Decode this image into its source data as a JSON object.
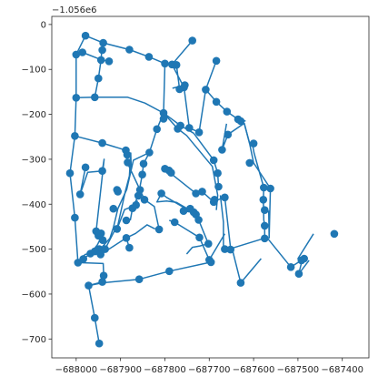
{
  "chart_data": {
    "type": "scatter",
    "title": "",
    "xlabel": "",
    "ylabel": "",
    "grid": false,
    "colors": {
      "series": "#1f77b4",
      "axis": "#262626"
    },
    "x_ticks": [
      -688000,
      -687900,
      -687800,
      -687700,
      -687600,
      -687500,
      -687400
    ],
    "x_tick_labels": [
      "−688000",
      "−687900",
      "−687800",
      "−687700",
      "−687600",
      "−687500",
      "−687400"
    ],
    "y_offset_label": "−1.056e6",
    "y_ticks": [
      0,
      -100,
      -200,
      -300,
      -400,
      -500,
      -600,
      -700
    ],
    "y_tick_labels": [
      "0",
      "−100",
      "−200",
      "−300",
      "−400",
      "−500",
      "−600",
      "−700"
    ],
    "xlim": [
      -688055,
      -687340
    ],
    "ylim": [
      -742,
      18
    ],
    "segments": [
      [
        [
          -687979,
          -25
        ],
        [
          -687939,
          -41
        ],
        [
          -687880,
          -56
        ],
        [
          -687836,
          -72
        ],
        [
          -687800,
          -87
        ]
      ],
      [
        [
          -687979,
          -25
        ],
        [
          -688000,
          -67
        ],
        [
          -688000,
          -163
        ],
        [
          -688003,
          -248
        ],
        [
          -688014,
          -331
        ],
        [
          -688003,
          -430
        ],
        [
          -687996,
          -530
        ]
      ],
      [
        [
          -687986,
          -62
        ],
        [
          -687942,
          -79
        ],
        [
          -687926,
          -82
        ]
      ],
      [
        [
          -687941,
          -41
        ],
        [
          -687944,
          -79
        ],
        [
          -687950,
          -120
        ],
        [
          -687958,
          -162
        ]
      ],
      [
        [
          -688000,
          -163
        ],
        [
          -687958,
          -162
        ],
        [
          -687884,
          -162
        ],
        [
          -687845,
          -175
        ],
        [
          -687803,
          -197
        ]
      ],
      [
        [
          -688003,
          -248
        ],
        [
          -687941,
          -264
        ],
        [
          -687888,
          -280
        ]
      ],
      [
        [
          -687800,
          -87
        ],
        [
          -687774,
          -90
        ]
      ],
      [
        [
          -687774,
          -90
        ],
        [
          -687767,
          -144
        ]
      ],
      [
        [
          -687800,
          -87
        ],
        [
          -687803,
          -197
        ],
        [
          -687765,
          -225
        ],
        [
          -687735,
          -242
        ]
      ],
      [
        [
          -687738,
          -36
        ],
        [
          -687784,
          -89
        ],
        [
          -687757,
          -140
        ]
      ],
      [
        [
          -687783,
          -142
        ],
        [
          -687755,
          -135
        ]
      ],
      [
        [
          -687757,
          -140
        ],
        [
          -687745,
          -230
        ]
      ],
      [
        [
          -687745,
          -230
        ],
        [
          -687723,
          -240
        ]
      ],
      [
        [
          -687803,
          -197
        ],
        [
          -687818,
          -233
        ],
        [
          -687835,
          -285
        ],
        [
          -687848,
          -310
        ],
        [
          -687851,
          -334
        ],
        [
          -687860,
          -381
        ],
        [
          -687873,
          -409
        ],
        [
          -687878,
          -436
        ]
      ],
      [
        [
          -687803,
          -197
        ],
        [
          -687771,
          -232
        ],
        [
          -687751,
          -247
        ],
        [
          -687693,
          -316
        ],
        [
          -687681,
          -380
        ],
        [
          -687684,
          -413
        ]
      ],
      [
        [
          -687835,
          -285
        ],
        [
          -687871,
          -302
        ],
        [
          -687886,
          -367
        ],
        [
          -687906,
          -410
        ],
        [
          -687916,
          -452
        ],
        [
          -687924,
          -476
        ],
        [
          -687944,
          -498
        ],
        [
          -687944,
          -509
        ],
        [
          -687963,
          -508
        ],
        [
          -687980,
          -512
        ],
        [
          -687991,
          -523
        ]
      ],
      [
        [
          -687888,
          -280
        ],
        [
          -687885,
          -307
        ],
        [
          -687856,
          -368
        ],
        [
          -687846,
          -390
        ],
        [
          -687824,
          -405
        ],
        [
          -687813,
          -456
        ]
      ],
      [
        [
          -687808,
          -376
        ],
        [
          -687796,
          -385
        ],
        [
          -687730,
          -423
        ],
        [
          -687724,
          -435
        ],
        [
          -687702,
          -488
        ],
        [
          -687710,
          -490
        ],
        [
          -687721,
          -493
        ],
        [
          -687738,
          -496
        ],
        [
          -687751,
          -511
        ]
      ],
      [
        [
          -687808,
          -376
        ],
        [
          -687818,
          -395
        ],
        [
          -687796,
          -393
        ],
        [
          -687774,
          -396
        ],
        [
          -687735,
          -418
        ],
        [
          -687758,
          -415
        ],
        [
          -687743,
          -410
        ]
      ],
      [
        [
          -687800,
          -321
        ],
        [
          -687730,
          -376
        ]
      ],
      [
        [
          -687791,
          -325
        ],
        [
          -687786,
          -330
        ]
      ],
      [
        [
          -687723,
          -240
        ],
        [
          -687708,
          -145
        ],
        [
          -687684,
          -172
        ],
        [
          -687660,
          -194
        ],
        [
          -687635,
          -211
        ],
        [
          -687618,
          -215
        ]
      ],
      [
        [
          -687684,
          -81
        ],
        [
          -687708,
          -145
        ]
      ],
      [
        [
          -687735,
          -242
        ],
        [
          -687690,
          -302
        ]
      ],
      [
        [
          -687716,
          -372
        ],
        [
          -687690,
          -395
        ]
      ],
      [
        [
          -687690,
          -302
        ],
        [
          -687681,
          -331
        ],
        [
          -687679,
          -361
        ]
      ],
      [
        [
          -687661,
          -221
        ],
        [
          -687671,
          -279
        ],
        [
          -687658,
          -245
        ],
        [
          -687621,
          -220
        ],
        [
          -687609,
          -265
        ],
        [
          -687600,
          -308
        ],
        [
          -687562,
          -365
        ],
        [
          -687565,
          -475
        ],
        [
          -687566,
          -414
        ]
      ],
      [
        [
          -687621,
          -220
        ],
        [
          -687609,
          -265
        ]
      ],
      [
        [
          -687603,
          -264
        ],
        [
          -687599,
          -286
        ],
        [
          -687577,
          -363
        ]
      ],
      [
        [
          -687577,
          -363
        ],
        [
          -687578,
          -390
        ],
        [
          -687577,
          -435
        ],
        [
          -687575,
          -448
        ],
        [
          -687575,
          -476
        ]
      ],
      [
        [
          -687688,
          -390
        ],
        [
          -687680,
          -390
        ],
        [
          -687665,
          -385
        ],
        [
          -687652,
          -497
        ],
        [
          -687658,
          -499
        ]
      ],
      [
        [
          -687652,
          -499
        ],
        [
          -687570,
          -474
        ],
        [
          -687516,
          -540
        ],
        [
          -687492,
          -525
        ],
        [
          -687500,
          -521
        ],
        [
          -687465,
          -466
        ]
      ],
      [
        [
          -687490,
          -521
        ],
        [
          -687498,
          -555
        ],
        [
          -687475,
          -525
        ]
      ],
      [
        [
          -687675,
          -380
        ],
        [
          -687668,
          -440
        ],
        [
          -687668,
          -500
        ]
      ],
      [
        [
          -687668,
          -500
        ],
        [
          -687648,
          -501
        ],
        [
          -687629,
          -575
        ],
        [
          -687583,
          -521
        ]
      ],
      [
        [
          -687996,
          -530
        ],
        [
          -687984,
          -522
        ],
        [
          -687968,
          -510
        ],
        [
          -687952,
          -490
        ],
        [
          -687946,
          -478
        ],
        [
          -687940,
          -470
        ],
        [
          -687944,
          -465
        ]
      ],
      [
        [
          -687979,
          -318
        ],
        [
          -687991,
          -378
        ],
        [
          -687974,
          -329
        ],
        [
          -687941,
          -326
        ]
      ],
      [
        [
          -687941,
          -326
        ],
        [
          -687937,
          -300
        ],
        [
          -687955,
          -460
        ]
      ],
      [
        [
          -687955,
          -460
        ],
        [
          -687946,
          -479
        ],
        [
          -687940,
          -472
        ]
      ],
      [
        [
          -687996,
          -530
        ],
        [
          -687939,
          -532
        ],
        [
          -687938,
          -559
        ],
        [
          -687941,
          -573
        ],
        [
          -687972,
          -581
        ]
      ],
      [
        [
          -687972,
          -581
        ],
        [
          -687941,
          -575
        ],
        [
          -687858,
          -567
        ],
        [
          -687790,
          -549
        ],
        [
          -687696,
          -529
        ]
      ],
      [
        [
          -687972,
          -581
        ],
        [
          -687958,
          -653
        ],
        [
          -687948,
          -710
        ]
      ],
      [
        [
          -687945,
          -512
        ],
        [
          -687887,
          -475
        ],
        [
          -687880,
          -497
        ]
      ],
      [
        [
          -687887,
          -475
        ],
        [
          -687866,
          -465
        ],
        [
          -687840,
          -446
        ],
        [
          -687822,
          -455
        ]
      ],
      [
        [
          -687908,
          -455
        ],
        [
          -687902,
          -440
        ],
        [
          -687891,
          -412
        ],
        [
          -687865,
          -402
        ],
        [
          -687862,
          -392
        ]
      ],
      [
        [
          -687935,
          -500
        ],
        [
          -687915,
          -462
        ],
        [
          -687908,
          -455
        ],
        [
          -687889,
          -371
        ],
        [
          -687880,
          -337
        ],
        [
          -687877,
          -286
        ],
        [
          -687876,
          -322
        ]
      ],
      [
        [
          -687778,
          -440
        ],
        [
          -687790,
          -436
        ]
      ],
      [
        [
          -687778,
          -440
        ],
        [
          -687722,
          -474
        ],
        [
          -687700,
          -524
        ],
        [
          -687665,
          -466
        ]
      ]
    ],
    "points": [
      [
        -687979,
        -25
      ],
      [
        -688000,
        -67
      ],
      [
        -687986,
        -62
      ],
      [
        -687939,
        -41
      ],
      [
        -687941,
        -57
      ],
      [
        -687944,
        -79
      ],
      [
        -687926,
        -82
      ],
      [
        -687950,
        -120
      ],
      [
        -687880,
        -56
      ],
      [
        -687836,
        -72
      ],
      [
        -687800,
        -87
      ],
      [
        -687784,
        -89
      ],
      [
        -687774,
        -90
      ],
      [
        -687738,
        -36
      ],
      [
        -687684,
        -81
      ],
      [
        -687757,
        -140
      ],
      [
        -687767,
        -144
      ],
      [
        -687755,
        -135
      ],
      [
        -688000,
        -163
      ],
      [
        -687958,
        -162
      ],
      [
        -687803,
        -197
      ],
      [
        -687803,
        -210
      ],
      [
        -687771,
        -232
      ],
      [
        -687765,
        -225
      ],
      [
        -687745,
        -230
      ],
      [
        -687723,
        -240
      ],
      [
        -687708,
        -145
      ],
      [
        -687684,
        -172
      ],
      [
        -687660,
        -194
      ],
      [
        -687635,
        -211
      ],
      [
        -687629,
        -215
      ],
      [
        -688003,
        -248
      ],
      [
        -687941,
        -264
      ],
      [
        -687888,
        -280
      ],
      [
        -687885,
        -290
      ],
      [
        -687884,
        -307
      ],
      [
        -687835,
        -285
      ],
      [
        -687818,
        -233
      ],
      [
        -687800,
        -321
      ],
      [
        -687791,
        -325
      ],
      [
        -687786,
        -330
      ],
      [
        -687848,
        -310
      ],
      [
        -687851,
        -334
      ],
      [
        -687690,
        -302
      ],
      [
        -687681,
        -331
      ],
      [
        -687679,
        -361
      ],
      [
        -687671,
        -279
      ],
      [
        -687658,
        -245
      ],
      [
        -687600,
        -265
      ],
      [
        -687609,
        -308
      ],
      [
        -687562,
        -365
      ],
      [
        -687578,
        -390
      ],
      [
        -687575,
        -448
      ],
      [
        -687575,
        -476
      ],
      [
        -688014,
        -331
      ],
      [
        -687979,
        -318
      ],
      [
        -687991,
        -378
      ],
      [
        -687941,
        -326
      ],
      [
        -687908,
        -368
      ],
      [
        -687906,
        -372
      ],
      [
        -687916,
        -410
      ],
      [
        -687860,
        -381
      ],
      [
        -687873,
        -409
      ],
      [
        -687887,
        -436
      ],
      [
        -687856,
        -368
      ],
      [
        -687846,
        -390
      ],
      [
        -687808,
        -376
      ],
      [
        -687730,
        -376
      ],
      [
        -687716,
        -372
      ],
      [
        -687690,
        -395
      ],
      [
        -687688,
        -390
      ],
      [
        -687665,
        -385
      ],
      [
        -687730,
        -423
      ],
      [
        -687724,
        -435
      ],
      [
        -687735,
        -418
      ],
      [
        -687758,
        -415
      ],
      [
        -687743,
        -410
      ],
      [
        -687700,
        -524
      ],
      [
        -687778,
        -440
      ],
      [
        -687702,
        -488
      ],
      [
        -687722,
        -474
      ],
      [
        -687813,
        -456
      ],
      [
        -687865,
        -402
      ],
      [
        -687880,
        -497
      ],
      [
        -687887,
        -475
      ],
      [
        -688003,
        -430
      ],
      [
        -687996,
        -530
      ],
      [
        -687984,
        -522
      ],
      [
        -687968,
        -510
      ],
      [
        -687958,
        -505
      ],
      [
        -687948,
        -500
      ],
      [
        -687945,
        -512
      ],
      [
        -687940,
        -480
      ],
      [
        -687950,
        -470
      ],
      [
        -687944,
        -465
      ],
      [
        -687955,
        -460
      ],
      [
        -687972,
        -581
      ],
      [
        -687938,
        -559
      ],
      [
        -687941,
        -573
      ],
      [
        -687858,
        -567
      ],
      [
        -687790,
        -549
      ],
      [
        -687696,
        -529
      ],
      [
        -687958,
        -653
      ],
      [
        -687948,
        -710
      ],
      [
        -687665,
        -500
      ],
      [
        -687652,
        -501
      ],
      [
        -687629,
        -575
      ],
      [
        -687516,
        -540
      ],
      [
        -687498,
        -555
      ],
      [
        -687492,
        -525
      ],
      [
        -687486,
        -521
      ],
      [
        -687418,
        -466
      ],
      [
        -687577,
        -363
      ],
      [
        -687575,
        -413
      ],
      [
        -687935,
        -500
      ],
      [
        -687908,
        -455
      ]
    ]
  }
}
